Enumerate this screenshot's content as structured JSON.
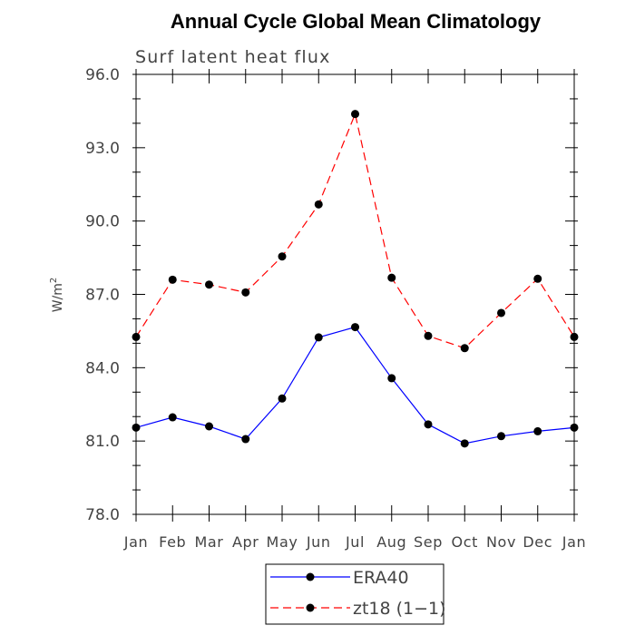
{
  "chart_data": {
    "type": "line",
    "title": "Annual Cycle Global Mean Climatology",
    "subtitle": "Surf latent heat flux",
    "xlabel": "",
    "ylabel": "W/m",
    "ylabel_superscript": "2",
    "categories": [
      "Jan",
      "Feb",
      "Mar",
      "Apr",
      "May",
      "Jun",
      "Jul",
      "Aug",
      "Sep",
      "Oct",
      "Nov",
      "Dec",
      "Jan"
    ],
    "ylim": [
      78.0,
      96.0
    ],
    "yticks": [
      "78.0",
      "81.0",
      "84.0",
      "87.0",
      "90.0",
      "93.0",
      "96.0"
    ],
    "grid": false,
    "legend_position": "bottom-center",
    "series": [
      {
        "name": "ERA40",
        "color": "#0000ff",
        "line_style": "solid",
        "marker": "filled-circle",
        "values": [
          81.55,
          81.97,
          81.6,
          81.08,
          82.74,
          85.24,
          85.66,
          83.57,
          81.68,
          80.9,
          81.2,
          81.4,
          81.55
        ]
      },
      {
        "name": "zt18 (1−1)",
        "color": "#ff0000",
        "line_style": "dashed",
        "marker": "filled-circle",
        "values": [
          85.26,
          87.6,
          87.4,
          87.08,
          88.55,
          90.68,
          94.38,
          87.68,
          85.3,
          84.8,
          86.24,
          87.64,
          85.26
        ]
      }
    ]
  }
}
